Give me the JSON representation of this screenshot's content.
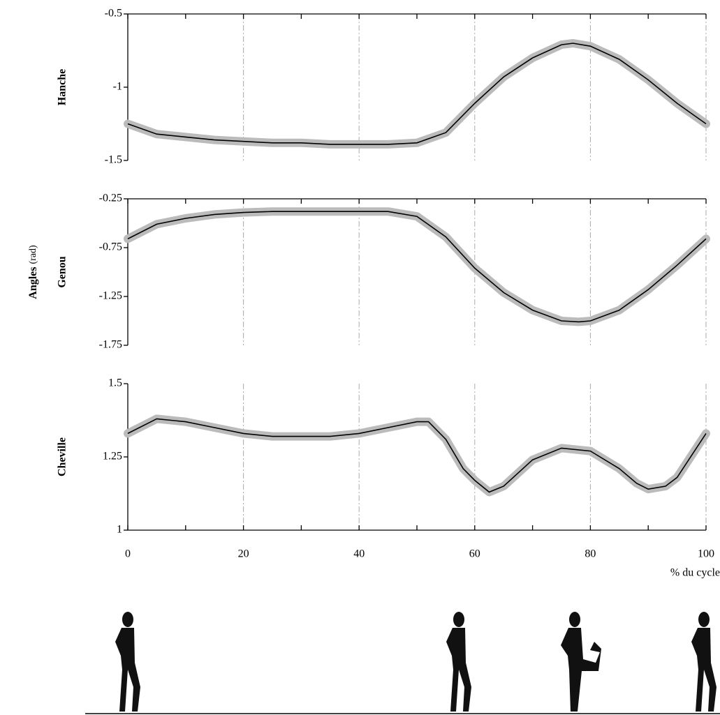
{
  "y_title": {
    "name": "Angles",
    "unit": "(rad)"
  },
  "chart_data": [
    {
      "type": "line",
      "ylabel": "Hanche",
      "xlim": [
        0,
        100
      ],
      "xticks": [
        0,
        20,
        40,
        60,
        80,
        100
      ],
      "xminorticks": [
        10,
        30,
        50,
        70,
        90
      ],
      "xaxis_position": "top",
      "show_xtick_labels": false,
      "ylim": [
        -1.5,
        -0.5
      ],
      "yticks": [
        -0.5,
        -1,
        -1.5
      ],
      "grid": true,
      "color": "#000000",
      "band_color": "#bbbbbb",
      "x": [
        0,
        5,
        10,
        15,
        20,
        25,
        30,
        35,
        40,
        45,
        50,
        55,
        60,
        65,
        70,
        75,
        77,
        80,
        85,
        90,
        95,
        100
      ],
      "values": [
        -1.25,
        -1.32,
        -1.34,
        -1.36,
        -1.37,
        -1.38,
        -1.38,
        -1.39,
        -1.39,
        -1.39,
        -1.38,
        -1.31,
        -1.11,
        -0.93,
        -0.8,
        -0.71,
        -0.7,
        -0.72,
        -0.81,
        -0.95,
        -1.11,
        -1.25
      ]
    },
    {
      "type": "line",
      "ylabel": "Genou",
      "xlim": [
        0,
        100
      ],
      "xticks": [
        0,
        20,
        40,
        60,
        80,
        100
      ],
      "xminorticks": [
        10,
        30,
        50,
        70,
        90
      ],
      "xaxis_position": "top",
      "show_xtick_labels": false,
      "ylim": [
        -1.75,
        -0.25
      ],
      "yticks": [
        -0.25,
        -0.75,
        -1.25,
        -1.75
      ],
      "grid": true,
      "color": "#000000",
      "band_color": "#bbbbbb",
      "x": [
        0,
        5,
        10,
        15,
        20,
        25,
        30,
        35,
        40,
        45,
        50,
        55,
        60,
        65,
        70,
        75,
        78,
        80,
        85,
        90,
        95,
        100
      ],
      "values": [
        -0.66,
        -0.51,
        -0.45,
        -0.41,
        -0.39,
        -0.38,
        -0.38,
        -0.38,
        -0.38,
        -0.38,
        -0.43,
        -0.64,
        -0.96,
        -1.21,
        -1.39,
        -1.5,
        -1.51,
        -1.5,
        -1.39,
        -1.18,
        -0.93,
        -0.66
      ]
    },
    {
      "type": "line",
      "ylabel": "Cheville",
      "xlim": [
        0,
        100
      ],
      "xticks": [
        0,
        20,
        40,
        60,
        80,
        100
      ],
      "xminorticks": [
        10,
        30,
        50,
        70,
        90
      ],
      "xaxis_position": "bottom",
      "show_xtick_labels": true,
      "xlabel": "% du cycle",
      "ylim": [
        1,
        1.5
      ],
      "yticks": [
        1.5,
        1.25,
        1
      ],
      "grid": true,
      "color": "#000000",
      "band_color": "#bbbbbb",
      "x": [
        0,
        5,
        10,
        15,
        20,
        25,
        30,
        35,
        40,
        45,
        50,
        52,
        55,
        58,
        60,
        62.5,
        65,
        70,
        75,
        80,
        85,
        88,
        90,
        93,
        95,
        100
      ],
      "values": [
        1.33,
        1.38,
        1.37,
        1.35,
        1.33,
        1.32,
        1.32,
        1.32,
        1.33,
        1.35,
        1.37,
        1.37,
        1.31,
        1.21,
        1.17,
        1.13,
        1.15,
        1.24,
        1.28,
        1.27,
        1.21,
        1.16,
        1.14,
        1.15,
        1.18,
        1.33
      ]
    }
  ]
}
